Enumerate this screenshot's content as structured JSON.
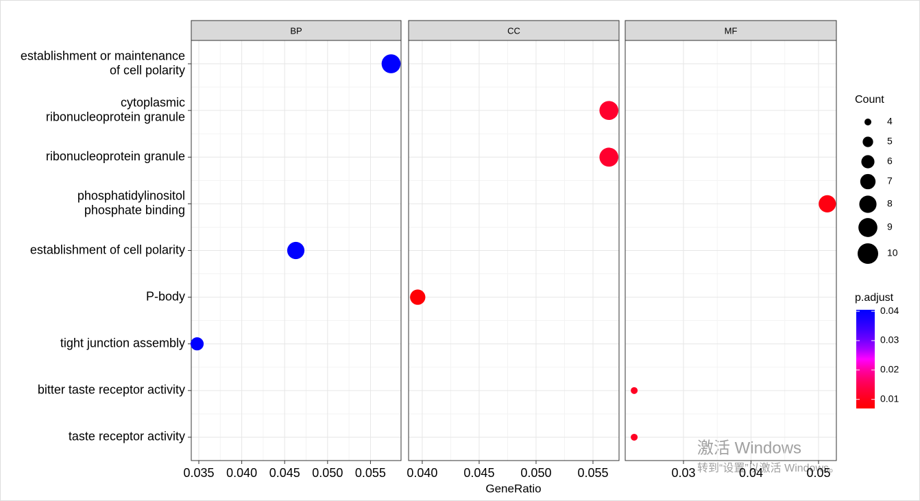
{
  "chart_data": {
    "type": "faceted-dot",
    "x_label": "GeneRatio",
    "categories": [
      [
        "establishment or maintenance",
        "of cell polarity"
      ],
      [
        "cytoplasmic",
        "ribonucleoprotein granule"
      ],
      [
        "ribonucleoprotein granule"
      ],
      [
        "phosphatidylinositol",
        "phosphate binding"
      ],
      [
        "establishment of cell polarity"
      ],
      [
        "P-body"
      ],
      [
        "tight junction assembly"
      ],
      [
        "bitter taste receptor activity"
      ],
      [
        "taste receptor activity"
      ]
    ],
    "facet": [
      "BP",
      "CC",
      "CC",
      "MF",
      "BP",
      "CC",
      "BP",
      "MF",
      "MF"
    ],
    "gene_ratio": [
      0.0574,
      0.0564,
      0.0564,
      0.0513,
      0.0463,
      0.0396,
      0.0348,
      0.0227,
      0.0227
    ],
    "count": [
      9,
      9,
      9,
      8,
      8,
      7,
      6,
      4,
      4
    ],
    "p_adjust": [
      0.0405,
      0.012,
      0.012,
      0.009,
      0.0405,
      0.0075,
      0.0405,
      0.011,
      0.011
    ],
    "facets": [
      {
        "name": "BP",
        "xlim": [
          0.03412,
          0.05856
        ],
        "xticks": [
          0.035,
          {
            "value": 0.04,
            "label": "0.040"
          },
          0.045,
          {
            "value": 0.05,
            "label": "0.050"
          },
          0.055
        ]
      },
      {
        "name": "CC",
        "xlim": [
          0.0388,
          0.05729
        ],
        "xticks": [
          {
            "value": 0.04,
            "label": "0.040"
          },
          0.045,
          {
            "value": 0.05,
            "label": "0.050"
          },
          0.055
        ]
      },
      {
        "name": "MF",
        "xlim": [
          0.02137,
          0.05264
        ],
        "xticks": [
          0.03,
          0.04,
          0.05
        ]
      }
    ],
    "size_legend": {
      "title": "Count",
      "values": [
        4,
        5,
        6,
        7,
        8,
        9,
        10
      ]
    },
    "color_legend": {
      "title": "p.adjust",
      "lim": [
        0.0069,
        0.0405
      ],
      "ticks": [
        0.01,
        0.02,
        0.03,
        0.04
      ],
      "low_color": "#ff0000",
      "high_color": "#0000ff"
    },
    "grid": true
  },
  "watermark": {
    "title": "激活 Windows",
    "subtitle": "转到“设置”以激活 Windows。"
  }
}
